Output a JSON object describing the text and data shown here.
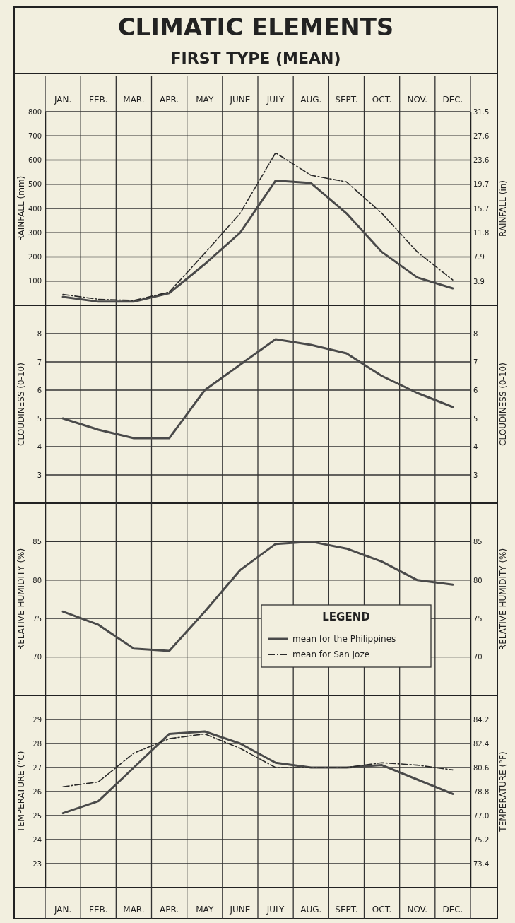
{
  "chart_data": [
    {
      "type": "line",
      "title": "CLIMATIC ELEMENTS",
      "subtitle": "FIRST TYPE (MEAN)",
      "ylabel": "RAINFALL (mm)",
      "y2label": "RAINFALL (in)",
      "categories": [
        "JAN.",
        "FEB.",
        "MAR.",
        "APR.",
        "MAY",
        "JUNE",
        "JULY",
        "AUG.",
        "SEPT.",
        "OCT.",
        "NOV.",
        "DEC."
      ],
      "ylim": [
        0,
        800
      ],
      "yticks": [
        100,
        200,
        300,
        400,
        500,
        600,
        700,
        800
      ],
      "y2lim": [
        0,
        31.5
      ],
      "y2ticks": [
        3.9,
        7.9,
        11.8,
        15.7,
        19.7,
        23.6,
        27.6,
        31.5
      ],
      "grid": true,
      "legend": "bottom",
      "legend_title": "LEGEND",
      "series": [
        {
          "name": "mean for the Philippines",
          "color": "#4a4a4a",
          "line_style": "solid",
          "values": [
            35,
            15,
            15,
            50,
            170,
            300,
            515,
            505,
            380,
            220,
            115,
            70
          ]
        },
        {
          "name": "mean for San Joze",
          "color": "#2a2a2a",
          "line_style": "dashed",
          "values": [
            45,
            25,
            20,
            55,
            215,
            380,
            630,
            537,
            510,
            380,
            220,
            105
          ]
        }
      ]
    },
    {
      "type": "line",
      "ylabel": "CLOUDINESS (0-10)",
      "y2label": "CLOUDINESS (0-10)",
      "tick_labels": "y",
      "ylim": [
        2,
        9
      ],
      "yticks": [
        3,
        4,
        5,
        6,
        7,
        8
      ],
      "y2lim": [
        2,
        9
      ],
      "y2ticks": [
        3,
        4,
        5,
        6,
        7,
        8
      ],
      "grid": true,
      "series": [
        {
          "color": "#4a4a4a",
          "line_style": "solid",
          "values": [
            5.0,
            4.6,
            4.3,
            4.3,
            6.0,
            6.9,
            7.8,
            7.6,
            7.3,
            6.5,
            5.9,
            5.4
          ]
        }
      ]
    },
    {
      "type": "line",
      "ylabel": "RELATIVE HUMIDITY (%)",
      "y2label": "RELATIVE HUMIDITY (%)",
      "tick_labels": "y",
      "ylim": [
        65,
        90
      ],
      "yticks": [
        70,
        75,
        80,
        85
      ],
      "y2lim": [
        65,
        90
      ],
      "y2ticks": [
        70,
        75,
        80,
        85
      ],
      "grid": true,
      "series": [
        {
          "color": "#4a4a4a",
          "line_style": "solid",
          "values": [
            75.9,
            74.2,
            71.1,
            70.8,
            75.9,
            81.3,
            84.7,
            85.0,
            84.1,
            82.4,
            80.0,
            79.4
          ]
        }
      ]
    },
    {
      "type": "line",
      "ylabel": "TEMPERATURE (°C)",
      "y2label": "TEMPERATURE (°F)",
      "categories": [
        "JAN.",
        "FEB.",
        "MAR.",
        "APR.",
        "MAY",
        "JUNE",
        "JULY",
        "AUG.",
        "SEPT.",
        "OCT.",
        "NOV.",
        "DEC."
      ],
      "ylim": [
        22,
        30
      ],
      "yticks": [
        23,
        24,
        25,
        26,
        27,
        28,
        29
      ],
      "y2lim": [
        71.6,
        86
      ],
      "y2ticks": [
        73.4,
        75.2,
        {
          "value": 77,
          "label": "77.0"
        },
        78.8,
        80.6,
        82.4,
        84.2
      ],
      "grid": true,
      "series": [
        {
          "color": "#4a4a4a",
          "line_style": "solid",
          "values": [
            25.1,
            25.6,
            27.0,
            28.4,
            28.5,
            28.0,
            27.2,
            27.0,
            27.0,
            27.1,
            26.5,
            25.9
          ]
        },
        {
          "color": "#2a2a2a",
          "line_style": "dashed",
          "values": [
            26.2,
            26.4,
            27.6,
            28.2,
            28.4,
            27.8,
            27.0,
            27.0,
            27.0,
            27.2,
            27.1,
            26.9
          ]
        }
      ]
    }
  ]
}
